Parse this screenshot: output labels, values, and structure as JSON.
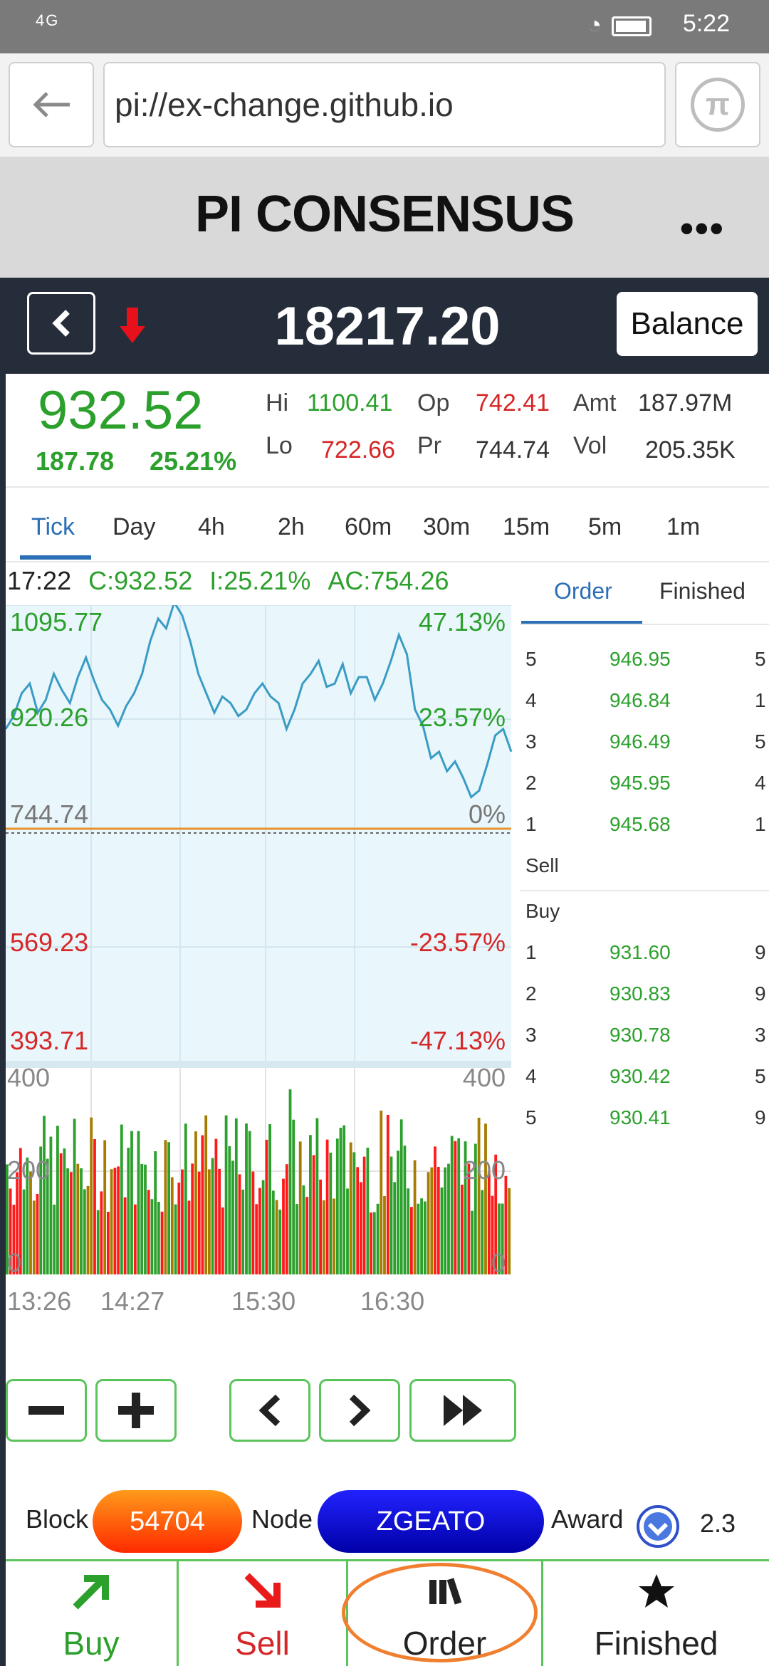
{
  "status_bar": {
    "network": "4G",
    "time": "5:22"
  },
  "browser": {
    "url": "pi://ex-change.github.io"
  },
  "app": {
    "title": "PI CONSENSUS"
  },
  "ticker": {
    "price": "18217.20",
    "balance_label": "Balance"
  },
  "stats": {
    "last": "932.52",
    "change": "187.78",
    "change_pct": "25.21%",
    "hi_label": "Hi",
    "hi": "1100.41",
    "lo_label": "Lo",
    "lo": "722.66",
    "op_label": "Op",
    "op": "742.41",
    "pr_label": "Pr",
    "pr": "744.74",
    "amt_label": "Amt",
    "amt": "187.97M",
    "vol_label": "Vol",
    "vol": "205.35K"
  },
  "timeframes": [
    "Tick",
    "Day",
    "4h",
    "2h",
    "60m",
    "30m",
    "15m",
    "5m",
    "1m"
  ],
  "info_line": {
    "time": "17:22",
    "close": "C:932.52",
    "increase": "I:25.21%",
    "average": "AC:754.26"
  },
  "chart_data": {
    "type": "line",
    "price": {
      "y_axis_labels": [
        "1095.77",
        "920.26",
        "744.74",
        "569.23",
        "393.71"
      ],
      "pct_labels": [
        "47.13%",
        "23.57%",
        "0%",
        "-23.57%",
        "-47.13%"
      ],
      "ylim": [
        393.71,
        1095.77
      ],
      "reference": 744.74,
      "series": [
        {
          "values": [
            905,
            925,
            960,
            975,
            930,
            950,
            990,
            965,
            945,
            985,
            1015,
            980,
            950,
            935,
            910,
            940,
            960,
            990,
            1040,
            1075,
            1060,
            1100,
            1080,
            1040,
            990,
            960,
            930,
            955,
            945,
            925,
            935,
            960,
            975,
            955,
            945,
            905,
            935,
            975,
            990,
            1010,
            970,
            975,
            1005,
            960,
            985,
            985,
            950,
            975,
            1010,
            1050,
            1020,
            935,
            910,
            860,
            870,
            840,
            855,
            830,
            800,
            810,
            850,
            895,
            905,
            870
          ]
        }
      ]
    },
    "volume": {
      "y_axis_labels": [
        "400",
        "200",
        "0"
      ],
      "ylim": [
        0,
        400
      ],
      "x_labels": [
        "13:26",
        "14:27",
        "15:30",
        "16:30"
      ],
      "colors": {
        "up": "#2ca02c",
        "down": "#ff1a1a",
        "mix": "#a67c00"
      }
    }
  },
  "order_book": {
    "tabs": [
      "Order",
      "Finished"
    ],
    "sell_label": "Sell",
    "buy_label": "Buy",
    "sell": [
      {
        "level": "5",
        "price": "946.95",
        "qty": "5"
      },
      {
        "level": "4",
        "price": "946.84",
        "qty": "1"
      },
      {
        "level": "3",
        "price": "946.49",
        "qty": "5"
      },
      {
        "level": "2",
        "price": "945.95",
        "qty": "4"
      },
      {
        "level": "1",
        "price": "945.68",
        "qty": "1"
      }
    ],
    "buy": [
      {
        "level": "1",
        "price": "931.60",
        "qty": "9"
      },
      {
        "level": "2",
        "price": "930.83",
        "qty": "9"
      },
      {
        "level": "3",
        "price": "930.78",
        "qty": "3"
      },
      {
        "level": "4",
        "price": "930.42",
        "qty": "5"
      },
      {
        "level": "5",
        "price": "930.41",
        "qty": "9"
      }
    ]
  },
  "footer": {
    "block_label": "Block",
    "block_value": "54704",
    "node_label": "Node",
    "node_value": "ZGEATO",
    "award_label": "Award",
    "award_value": "2.3"
  },
  "nav": {
    "buy": "Buy",
    "sell": "Sell",
    "order": "Order",
    "finished": "Finished"
  }
}
